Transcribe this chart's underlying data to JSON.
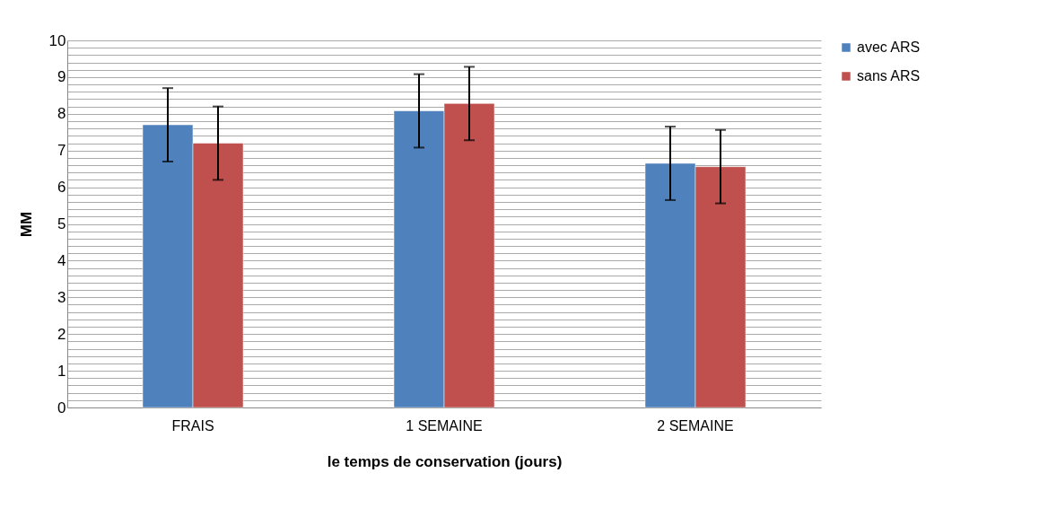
{
  "chart_data": {
    "type": "bar",
    "xlabel": "le temps de conservation (jours)",
    "ylabel": "MM",
    "categories": [
      "FRAIS",
      "1 SEMAINE",
      "2 SEMAINE"
    ],
    "series": [
      {
        "name": "avec ARS",
        "color": "#4f81bd",
        "values": [
          7.7,
          8.08,
          6.65
        ],
        "errors": [
          1,
          1,
          1
        ]
      },
      {
        "name": "sans ARS",
        "color": "#c0504d",
        "values": [
          7.2,
          8.28,
          6.56
        ],
        "errors": [
          1,
          1,
          1
        ]
      }
    ],
    "ylim": [
      0,
      10
    ],
    "yticks": [
      0,
      {
        "value": 0.2,
        "label": null
      },
      {
        "value": 0.4,
        "label": null
      },
      {
        "value": 0.6,
        "label": null
      },
      {
        "value": 0.8,
        "label": null
      },
      1,
      {
        "value": 1.2,
        "label": null
      },
      {
        "value": 1.4,
        "label": null
      },
      {
        "value": 1.6,
        "label": null
      },
      {
        "value": 1.8,
        "label": null
      },
      2,
      {
        "value": 2.2,
        "label": null
      },
      {
        "value": 2.4,
        "label": null
      },
      {
        "value": 2.6,
        "label": null
      },
      {
        "value": 2.8,
        "label": null
      },
      3,
      {
        "value": 3.2,
        "label": null
      },
      {
        "value": 3.4,
        "label": null
      },
      {
        "value": 3.6,
        "label": null
      },
      {
        "value": 3.8,
        "label": null
      },
      4,
      {
        "value": 4.2,
        "label": null
      },
      {
        "value": 4.4,
        "label": null
      },
      {
        "value": 4.6,
        "label": null
      },
      {
        "value": 4.8,
        "label": null
      },
      5,
      {
        "value": 5.2,
        "label": null
      },
      {
        "value": 5.4,
        "label": null
      },
      {
        "value": 5.6,
        "label": null
      },
      {
        "value": 5.8,
        "label": null
      },
      6,
      {
        "value": 6.2,
        "label": null
      },
      {
        "value": 6.4,
        "label": null
      },
      {
        "value": 6.6,
        "label": null
      },
      {
        "value": 6.8,
        "label": null
      },
      7,
      {
        "value": 7.2,
        "label": null
      },
      {
        "value": 7.4,
        "label": null
      },
      {
        "value": 7.6,
        "label": null
      },
      {
        "value": 7.8,
        "label": null
      },
      8,
      {
        "value": 8.2,
        "label": null
      },
      {
        "value": 8.4,
        "label": null
      },
      {
        "value": 8.6,
        "label": null
      },
      {
        "value": 8.8,
        "label": null
      },
      9,
      {
        "value": 9.2,
        "label": null
      },
      {
        "value": 9.4,
        "label": null
      },
      {
        "value": 9.6,
        "label": null
      },
      {
        "value": 9.8,
        "label": null
      },
      10
    ],
    "grid": "y",
    "legend": "right"
  }
}
